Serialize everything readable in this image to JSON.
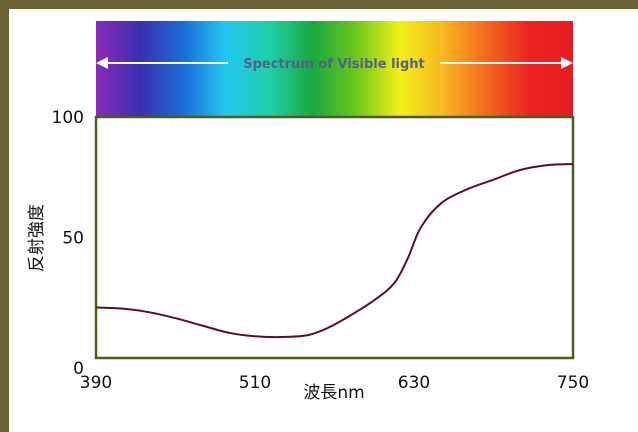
{
  "chart_data": {
    "type": "line",
    "spectrum_label": "Spectrum of Visible light",
    "spectrum_colors": [
      "#8c2ab8",
      "#3a2fb0",
      "#1a6cd8",
      "#22c8f0",
      "#1fd0a8",
      "#1aa840",
      "#6cc81c",
      "#f0f01a",
      "#f8b820",
      "#f26a1c",
      "#ec2220",
      "#e81c24"
    ],
    "xlabel": "波長nm",
    "ylabel": "反射強度",
    "xlim": [
      390,
      750
    ],
    "ylim": [
      0,
      100
    ],
    "x_ticks": [
      "390",
      "510",
      "630",
      "750"
    ],
    "y_ticks": [
      "0",
      "50",
      "100"
    ],
    "series": [
      {
        "color": "#5a1020",
        "x": [
          390,
          410,
          430,
          450,
          470,
          490,
          510,
          530,
          550,
          565,
          580,
          600,
          615,
          625,
          635,
          650,
          670,
          690,
          710,
          730,
          750
        ],
        "y": [
          21,
          20.5,
          19,
          16.5,
          13.5,
          10.5,
          9,
          8.7,
          9.5,
          12.5,
          17,
          24,
          31,
          41,
          54,
          64,
          70,
          74,
          78,
          80,
          80.5
        ]
      }
    ]
  }
}
